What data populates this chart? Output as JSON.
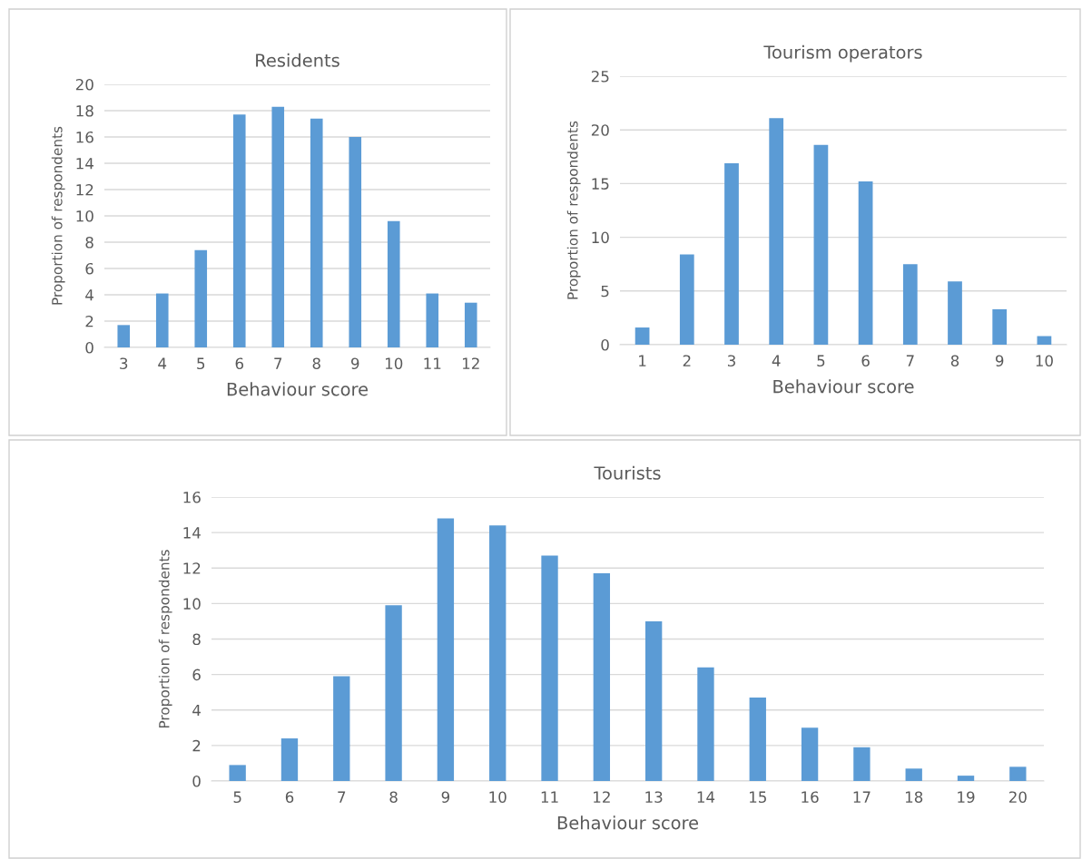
{
  "chart_data": [
    {
      "type": "bar",
      "title": "Residents",
      "xlabel": "Behaviour score",
      "ylabel": "Proportion of respondents",
      "categories": [
        "3",
        "4",
        "5",
        "6",
        "7",
        "8",
        "9",
        "10",
        "11",
        "12"
      ],
      "values": [
        1.7,
        4.1,
        7.4,
        17.7,
        18.3,
        17.4,
        16.0,
        9.6,
        4.1,
        3.4
      ],
      "color": "#5b9bd5",
      "ylim": [
        0,
        20
      ],
      "yticks": [
        0,
        2,
        4,
        6,
        8,
        10,
        12,
        14,
        16,
        18,
        20
      ],
      "grid": "y"
    },
    {
      "type": "bar",
      "title": "Tourism operators",
      "xlabel": "Behaviour score",
      "ylabel": "Proportion of respondents",
      "categories": [
        "1",
        "2",
        "3",
        "4",
        "5",
        "6",
        "7",
        "8",
        "9",
        "10"
      ],
      "values": [
        1.6,
        8.4,
        16.9,
        21.1,
        18.6,
        15.2,
        7.5,
        5.9,
        3.3,
        0.8
      ],
      "color": "#5b9bd5",
      "ylim": [
        0,
        25
      ],
      "yticks": [
        0,
        5,
        10,
        15,
        20,
        25
      ],
      "grid": "y"
    },
    {
      "type": "bar",
      "title": "Tourists",
      "xlabel": "Behaviour score",
      "ylabel": "Proportion of respondents",
      "categories": [
        "5",
        "6",
        "7",
        "8",
        "9",
        "10",
        "11",
        "12",
        "13",
        "14",
        "15",
        "16",
        "17",
        "18",
        "19",
        "20"
      ],
      "values": [
        0.9,
        2.4,
        5.9,
        9.9,
        14.8,
        14.4,
        12.7,
        11.7,
        9.0,
        6.4,
        4.7,
        3.0,
        1.9,
        0.7,
        0.3,
        0.8
      ],
      "color": "#5b9bd5",
      "ylim": [
        0,
        16
      ],
      "yticks": [
        0,
        2,
        4,
        6,
        8,
        10,
        12,
        14,
        16
      ],
      "grid": "y"
    }
  ]
}
